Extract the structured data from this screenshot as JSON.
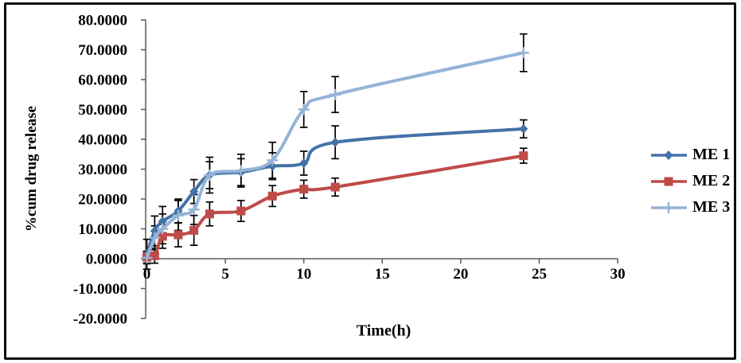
{
  "chart_data": {
    "type": "line",
    "title": "",
    "xlabel": "Time(h)",
    "ylabel": "%cum drug release",
    "xlim": [
      0,
      30
    ],
    "ylim": [
      -20,
      80
    ],
    "grid": false,
    "legend_position": "right",
    "line_smoothing": true,
    "x_ticks": [
      0,
      5,
      10,
      15,
      20,
      25,
      30
    ],
    "x_tick_labels": [
      "0",
      "5",
      "10",
      "15",
      "20",
      "25",
      "30"
    ],
    "y_ticks": [
      80,
      70,
      60,
      50,
      40,
      30,
      20,
      10,
      0,
      -10,
      -20
    ],
    "y_tick_labels": [
      "80.0000",
      "70.0000",
      "60.0000",
      "50.0000",
      "40.0000",
      "30.0000",
      "20.0000",
      "10.0000",
      "0.0000",
      "-10.0000",
      "-20.0000"
    ],
    "x": [
      0,
      0.5,
      1,
      2,
      3,
      4,
      6,
      8,
      10,
      12,
      24
    ],
    "series": [
      {
        "name": "ME 1",
        "marker": "diamond",
        "color": "#4472A8",
        "values": [
          1.5,
          9.3,
          12.5,
          16,
          22.5,
          28,
          29,
          31,
          32,
          39,
          43.5
        ],
        "errors": [
          5,
          5,
          5,
          4,
          4,
          4.5,
          4.5,
          4.5,
          4,
          5.5,
          3
        ]
      },
      {
        "name": "ME 2",
        "marker": "square",
        "color": "#BE4B48",
        "values": [
          0.5,
          1,
          7.5,
          8,
          9.5,
          15,
          16,
          21,
          23.3,
          24,
          34.5
        ],
        "errors": [
          2,
          2.5,
          4,
          4,
          5,
          4,
          3.5,
          3.5,
          3,
          3,
          2.5
        ]
      },
      {
        "name": "ME 3",
        "marker": "plus",
        "color": "#95B3D7",
        "values": [
          0.3,
          7,
          10,
          14.5,
          16.5,
          28,
          29.5,
          33,
          50,
          55,
          69
        ],
        "errors": [
          2,
          4,
          5,
          5,
          5,
          6,
          5.5,
          6,
          6,
          6,
          6.3
        ]
      }
    ],
    "error_bar_color": "#000000"
  },
  "colors": {
    "axis": "#595959",
    "text": "#000000",
    "border": "#0D0D0D",
    "background": "#FFFFFF"
  }
}
